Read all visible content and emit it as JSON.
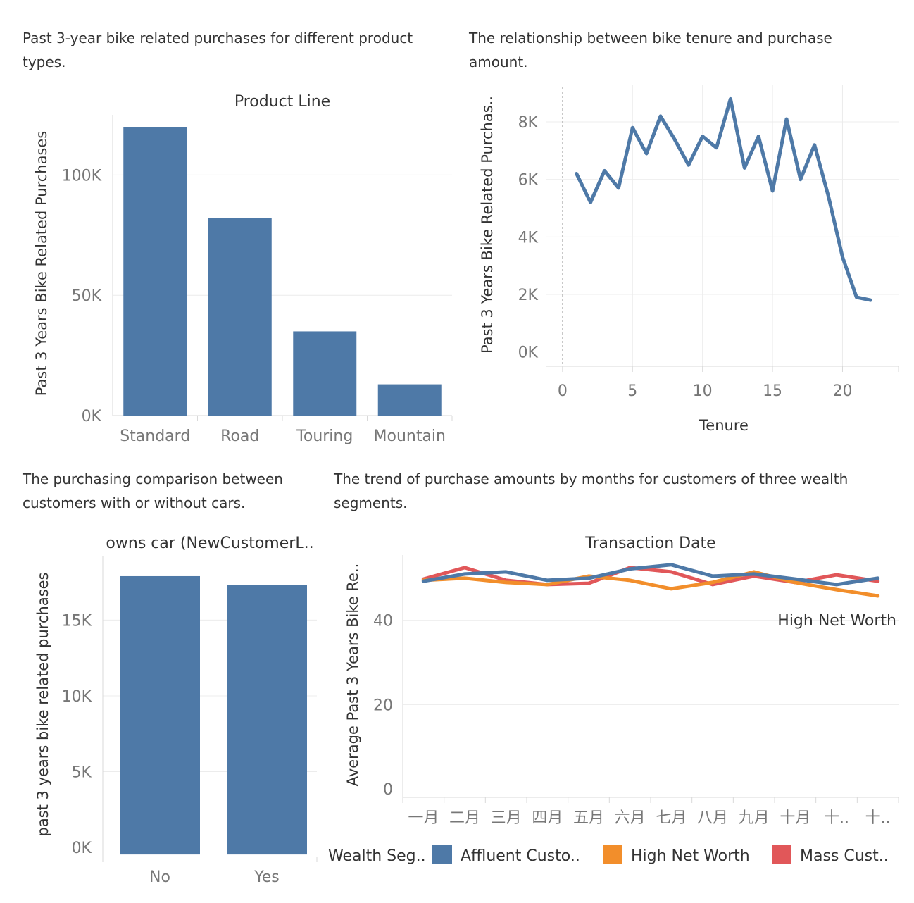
{
  "captions": {
    "c1": "Past 3-year bike related purchases for different product types.",
    "c2": "The relationship between bike tenure and purchase amount.",
    "c3": "The purchasing comparison between customers with or without cars.",
    "c4": "The trend of purchase amounts by months for customers of three wealth segments."
  },
  "chart_data": [
    {
      "type": "bar",
      "title": "Product Line",
      "xlabel": "",
      "ylabel": "Past 3 Years Bike Related Purchases",
      "categories": [
        "Standard",
        "Road",
        "Touring",
        "Mountain"
      ],
      "values": [
        120000,
        82000,
        35000,
        13000
      ],
      "yticks": [
        0,
        50000,
        100000
      ],
      "ytick_labels": [
        "0K",
        "50K",
        "100K"
      ],
      "ylim": [
        0,
        125000
      ],
      "color": "#4e79a7"
    },
    {
      "type": "line",
      "title": "",
      "xlabel": "Tenure",
      "ylabel": "Past 3 Years Bike Related Purchas..",
      "x": [
        1,
        2,
        3,
        4,
        5,
        6,
        7,
        8,
        9,
        10,
        11,
        12,
        13,
        14,
        15,
        16,
        17,
        18,
        19,
        20,
        21,
        22
      ],
      "values": [
        6200,
        5200,
        6300,
        5700,
        7800,
        6900,
        8200,
        7400,
        6500,
        7500,
        7100,
        8800,
        6400,
        7500,
        5600,
        8100,
        6000,
        7200,
        5400,
        3300,
        1900,
        1800
      ],
      "xticks": [
        0,
        5,
        10,
        15,
        20
      ],
      "xtick_labels": [
        "0",
        "5",
        "10",
        "15",
        "20"
      ],
      "yticks": [
        0,
        2000,
        4000,
        6000,
        8000
      ],
      "ytick_labels": [
        "0K",
        "2K",
        "4K",
        "6K",
        "8K"
      ],
      "xlim": [
        -1.2,
        24
      ],
      "ylim": [
        -500,
        9300
      ],
      "color": "#4e79a7"
    },
    {
      "type": "bar",
      "title": "owns car (NewCustomerL..",
      "xlabel": "",
      "ylabel": "past 3 years bike related purchases",
      "categories": [
        "No",
        "Yes"
      ],
      "values": [
        17900,
        17300
      ],
      "yticks": [
        0,
        5000,
        10000,
        15000
      ],
      "ytick_labels": [
        "0K",
        "5K",
        "10K",
        "15K"
      ],
      "ylim": [
        -600,
        19200
      ],
      "color": "#4e79a7"
    },
    {
      "type": "line",
      "title": "Transaction Date",
      "xlabel": "",
      "ylabel": "Average Past 3 Years Bike Re..",
      "categories": [
        "一月",
        "二月",
        "三月",
        "四月",
        "五月",
        "六月",
        "七月",
        "八月",
        "九月",
        "十月",
        "十..",
        "十.."
      ],
      "yticks": [
        0,
        20,
        40
      ],
      "ytick_labels": [
        "0",
        "20",
        "40"
      ],
      "ylim": [
        -2,
        55.5
      ],
      "annotation": "High Net Worth",
      "legend": {
        "title": "Wealth Seg..",
        "position": "bottom"
      },
      "series": [
        {
          "name": "Mass Cust..",
          "color": "#e15759",
          "values": [
            49.8,
            52.5,
            49.5,
            48.5,
            48.8,
            52.5,
            51.5,
            48.5,
            50.5,
            49.0,
            50.8,
            49.3
          ]
        },
        {
          "name": "High Net Worth",
          "color": "#f28e2b",
          "values": [
            49.5,
            50.0,
            49.0,
            48.5,
            50.5,
            49.5,
            47.5,
            49.0,
            51.5,
            49.0,
            47.3,
            45.8
          ]
        },
        {
          "name": "Affluent Custo..",
          "color": "#4e79a7",
          "values": [
            49.3,
            51.0,
            51.5,
            49.5,
            50.0,
            52.2,
            53.2,
            50.5,
            51.0,
            49.8,
            48.5,
            50.0
          ]
        }
      ]
    }
  ]
}
